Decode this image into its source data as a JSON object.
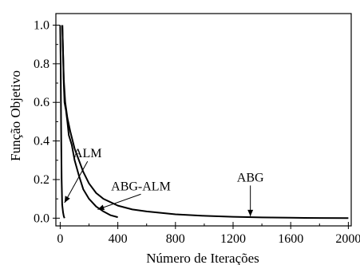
{
  "chart_data": {
    "type": "line",
    "title": "",
    "xlabel": "Número de Iterações",
    "ylabel": "Função Objetivo",
    "xlim": [
      -30,
      2020
    ],
    "ylim": [
      -0.04,
      1.06
    ],
    "xticks": [
      0,
      400,
      800,
      1200,
      1600,
      2000
    ],
    "yticks": [
      0.0,
      0.2,
      0.4,
      0.6,
      0.8,
      1.0
    ],
    "xtick_labels": [
      "0",
      "400",
      "800",
      "1200",
      "1600",
      "2000"
    ],
    "ytick_labels": [
      "0.0",
      "0.2",
      "0.4",
      "0.6",
      "0.8",
      "1.0"
    ],
    "grid": false,
    "legend": "none",
    "line_color": "#000000",
    "series": [
      {
        "name": "ALM",
        "x": [
          0,
          3,
          6,
          10,
          14,
          20,
          25,
          30
        ],
        "y": [
          1.0,
          0.8,
          0.5,
          0.2,
          0.07,
          0.03,
          0.01,
          0.0
        ]
      },
      {
        "name": "ABG-ALM",
        "x": [
          15,
          25,
          30,
          40,
          50,
          60,
          80,
          100,
          130,
          160,
          200,
          250,
          300,
          350,
          400
        ],
        "y": [
          1.0,
          0.7,
          0.6,
          0.56,
          0.5,
          0.43,
          0.38,
          0.3,
          0.22,
          0.15,
          0.1,
          0.06,
          0.035,
          0.015,
          0.005
        ]
      },
      {
        "name": "ABG",
        "x": [
          15,
          25,
          35,
          50,
          70,
          100,
          130,
          160,
          200,
          250,
          300,
          400,
          500,
          600,
          800,
          1000,
          1200,
          1400,
          1600,
          1800,
          2000
        ],
        "y": [
          1.0,
          0.72,
          0.6,
          0.52,
          0.45,
          0.36,
          0.3,
          0.24,
          0.18,
          0.13,
          0.1,
          0.065,
          0.045,
          0.035,
          0.02,
          0.012,
          0.007,
          0.004,
          0.002,
          0.001,
          0.0
        ]
      }
    ],
    "annotations": [
      {
        "text": "ALM",
        "x": 190,
        "y": 0.315,
        "arrow_to": [
          30,
          0.08
        ]
      },
      {
        "text": "ABG-ALM",
        "x": 560,
        "y": 0.145,
        "arrow_to": [
          260,
          0.045
        ]
      },
      {
        "text": "ABG",
        "x": 1320,
        "y": 0.19,
        "arrow_to": [
          1320,
          0.01
        ]
      }
    ]
  }
}
